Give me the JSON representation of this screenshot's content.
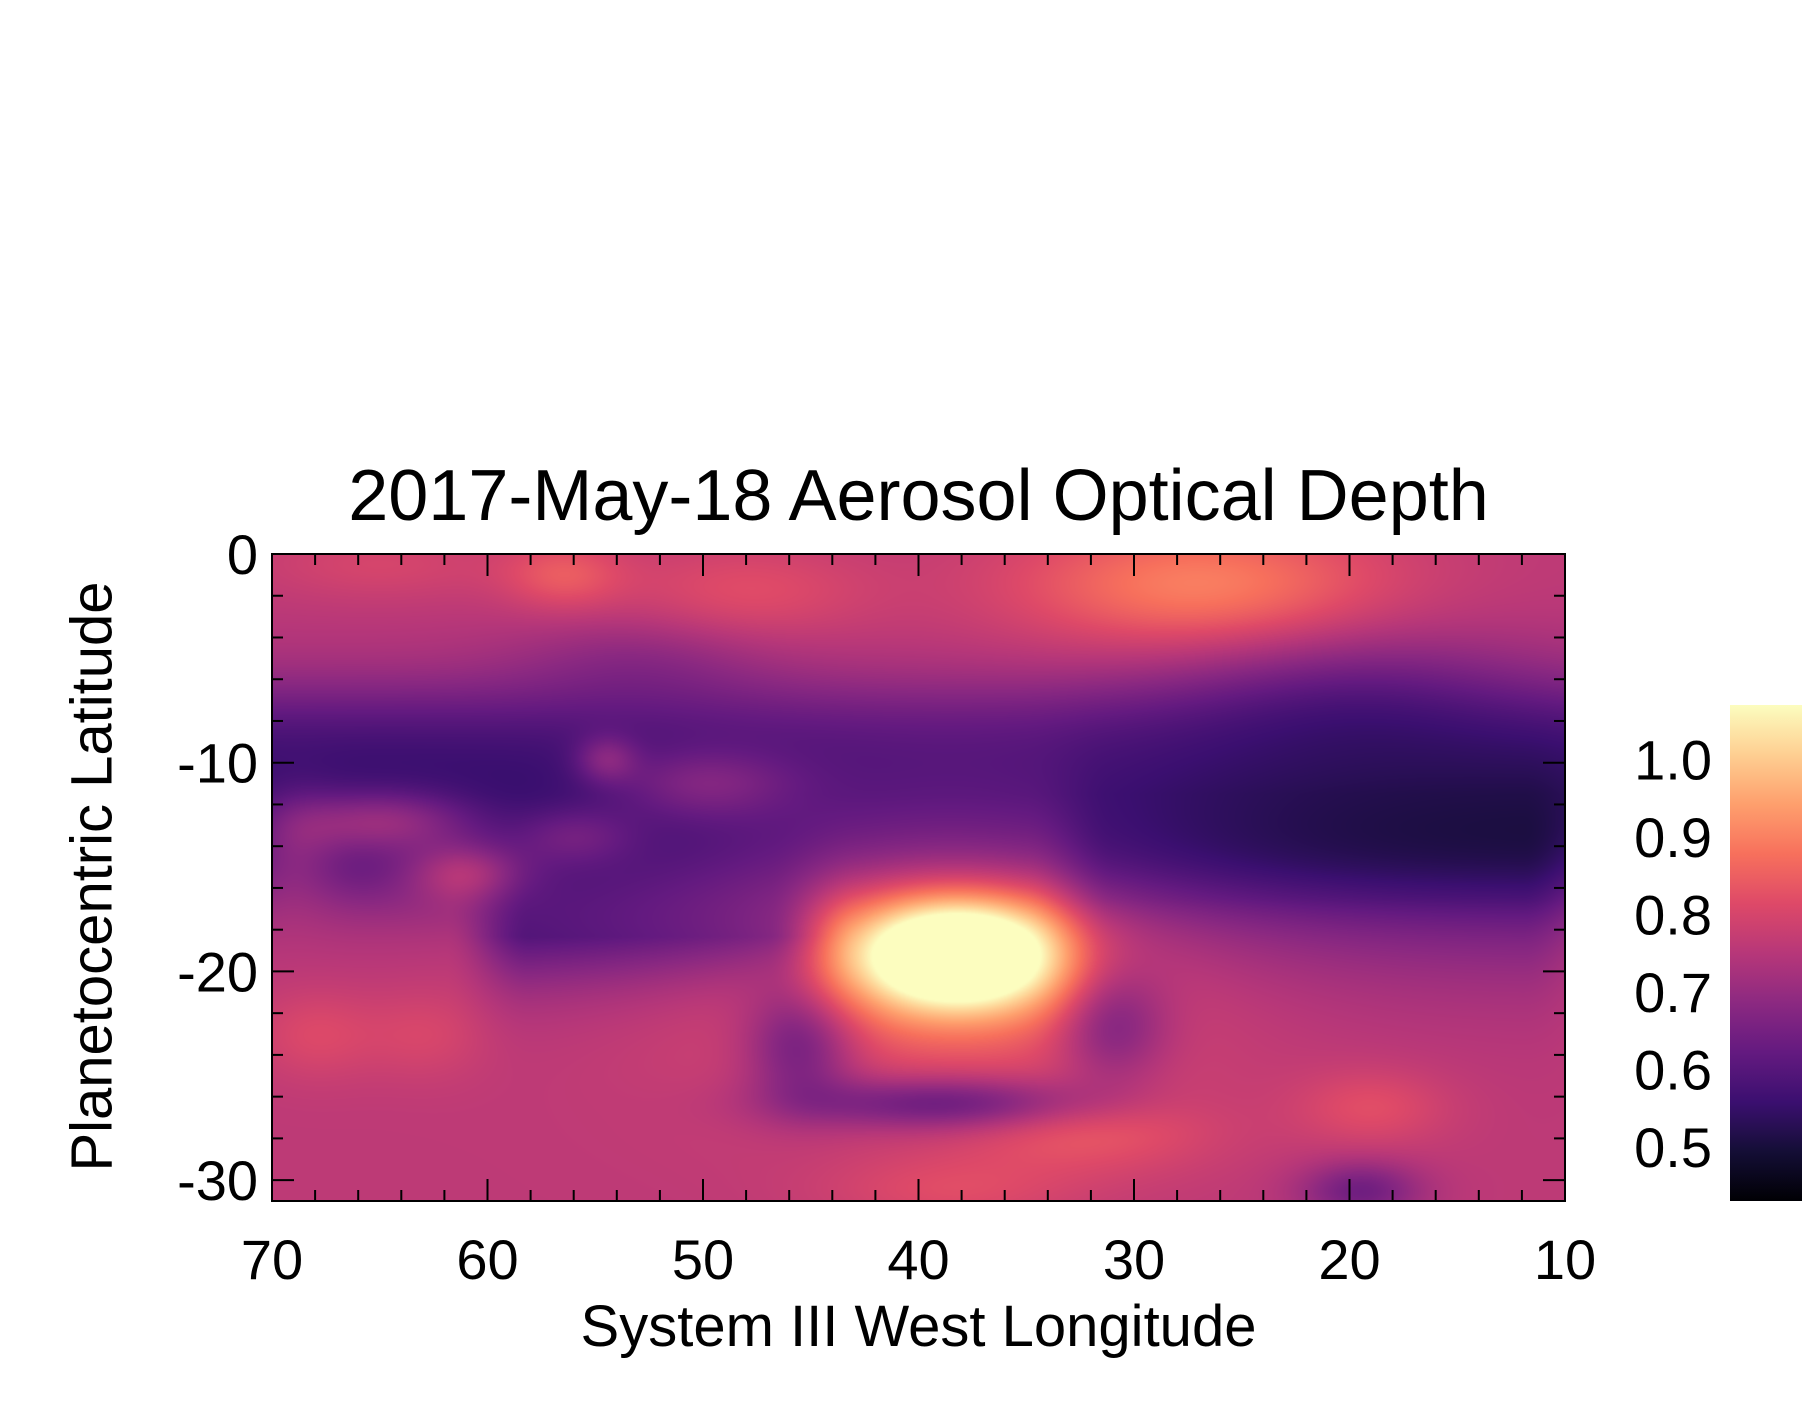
{
  "chart_data": {
    "type": "heatmap",
    "title": "2017-May-18 Aerosol Optical Depth",
    "xlabel": "System III West Longitude",
    "ylabel": "Planetocentric Latitude",
    "xlim": [
      70,
      10
    ],
    "ylim": [
      -31,
      0
    ],
    "x_ticks": [
      70,
      60,
      50,
      40,
      30,
      20,
      10
    ],
    "x_tick_labels": [
      "70",
      "60",
      "50",
      "40",
      "30",
      "20",
      "10"
    ],
    "y_ticks": [
      0,
      -10,
      -20,
      -30
    ],
    "y_tick_labels": [
      "0",
      "-10",
      "-20",
      "-30"
    ],
    "colorbar": {
      "range": [
        0.43,
        1.07
      ],
      "ticks": [
        0.5,
        0.6,
        0.7,
        0.8,
        0.9,
        1.0
      ],
      "tick_labels": [
        "0.5",
        "0.6",
        "0.7",
        "0.8",
        "0.9",
        "1.0"
      ],
      "colormap": "magma"
    },
    "grid": false,
    "background_level": 0.76,
    "bands": [
      {
        "lat_center": -11.5,
        "half_width": 4.6,
        "edge_width": 1.2,
        "amplitude": -0.22,
        "lon_from": 70,
        "lon_to": 10
      },
      {
        "lat_center": -18.3,
        "half_width": 1.5,
        "edge_width": 1.3,
        "amplitude": -0.19,
        "lon_from": 60,
        "lon_to": 45
      },
      {
        "lat_center": -16.5,
        "half_width": 3.5,
        "edge_width": 1.8,
        "amplitude": -0.1,
        "lon_from": 33,
        "lon_to": 10
      }
    ],
    "features": [
      {
        "lon": 38.2,
        "lat": -19.2,
        "sigma_lon": 3.4,
        "sigma_lat": 1.9,
        "amplitude": 0.44
      },
      {
        "lon": 38.5,
        "lat": -17.5,
        "sigma_lon": 9.0,
        "sigma_lat": 5.5,
        "amplitude": 0.12
      },
      {
        "lon": 38.5,
        "lat": -26.3,
        "sigma_lon": 5.0,
        "sigma_lat": 0.9,
        "amplitude": -0.16
      },
      {
        "lon": 45.5,
        "lat": -23.5,
        "sigma_lon": 1.8,
        "sigma_lat": 2.0,
        "amplitude": -0.14
      },
      {
        "lon": 31.0,
        "lat": -22.5,
        "sigma_lon": 1.8,
        "sigma_lat": 2.0,
        "amplitude": -0.12
      },
      {
        "lon": 27.0,
        "lat": -1.5,
        "sigma_lon": 6.0,
        "sigma_lat": 2.2,
        "amplitude": 0.14
      },
      {
        "lon": 48.0,
        "lat": -1.8,
        "sigma_lon": 4.0,
        "sigma_lat": 1.6,
        "amplitude": 0.06
      },
      {
        "lon": 56.5,
        "lat": -1.0,
        "sigma_lon": 2.0,
        "sigma_lat": 1.2,
        "amplitude": 0.08
      },
      {
        "lon": 65.0,
        "lat": -0.5,
        "sigma_lon": 4.0,
        "sigma_lat": 1.2,
        "amplitude": 0.04
      },
      {
        "lon": 20.0,
        "lat": -6.0,
        "sigma_lon": 6.0,
        "sigma_lat": 2.0,
        "amplitude": -0.07
      },
      {
        "lon": 53.0,
        "lat": -5.0,
        "sigma_lon": 4.0,
        "sigma_lat": 1.5,
        "amplitude": -0.05
      },
      {
        "lon": 65.0,
        "lat": -12.8,
        "sigma_lon": 3.0,
        "sigma_lat": 1.1,
        "amplitude": 0.15
      },
      {
        "lon": 61.0,
        "lat": -15.2,
        "sigma_lon": 2.0,
        "sigma_lat": 1.0,
        "amplitude": 0.13
      },
      {
        "lon": 54.5,
        "lat": -9.8,
        "sigma_lon": 1.0,
        "sigma_lat": 0.8,
        "amplitude": 0.1
      },
      {
        "lon": 50.0,
        "lat": -11.0,
        "sigma_lon": 3.0,
        "sigma_lat": 1.2,
        "amplitude": 0.1
      },
      {
        "lon": 56.0,
        "lat": -13.5,
        "sigma_lon": 2.0,
        "sigma_lat": 1.0,
        "amplitude": 0.08
      },
      {
        "lon": 69.0,
        "lat": -14.0,
        "sigma_lon": 1.5,
        "sigma_lat": 2.0,
        "amplitude": 0.08
      },
      {
        "lon": 68.0,
        "lat": -23.0,
        "sigma_lon": 2.0,
        "sigma_lat": 1.5,
        "amplitude": 0.05
      },
      {
        "lon": 63.0,
        "lat": -23.0,
        "sigma_lon": 2.0,
        "sigma_lat": 1.5,
        "amplitude": 0.04
      },
      {
        "lon": 32.0,
        "lat": -27.5,
        "sigma_lon": 4.0,
        "sigma_lat": 1.5,
        "amplitude": 0.07
      },
      {
        "lon": 19.0,
        "lat": -26.5,
        "sigma_lon": 2.5,
        "sigma_lat": 1.3,
        "amplitude": 0.06
      },
      {
        "lon": 19.5,
        "lat": -30.5,
        "sigma_lon": 2.0,
        "sigma_lat": 1.0,
        "amplitude": -0.12
      },
      {
        "lon": 38.5,
        "lat": -30.5,
        "sigma_lon": 4.0,
        "sigma_lat": 1.2,
        "amplitude": 0.05
      }
    ]
  }
}
